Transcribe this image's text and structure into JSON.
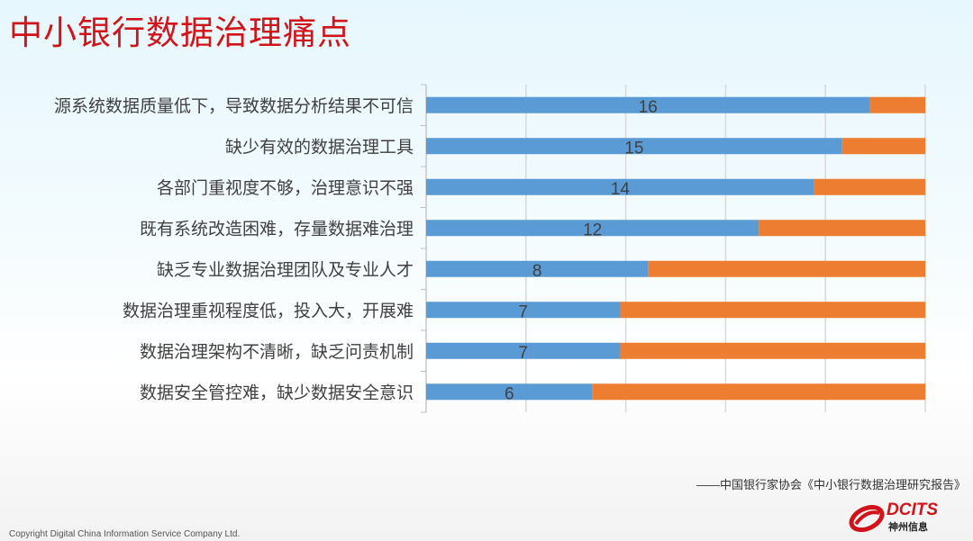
{
  "title": "中小银行数据治理痛点",
  "chart_data": {
    "type": "bar",
    "orientation": "horizontal",
    "stacked": true,
    "categories": [
      "源系统数据质量低下，导致数据分析结果不可信",
      "缺少有效的数据治理工具",
      "各部门重视度不够，治理意识不强",
      "既有系统改造困难，存量数据难治理",
      "缺乏专业数据治理团队及专业人才",
      "数据治理重视程度低，投入大，开展难",
      "数据治理架构不清晰，缺乏问责机制",
      "数据安全管控难，缺少数据安全意识"
    ],
    "series": [
      {
        "values": [
          16,
          15,
          14,
          12,
          8,
          7,
          7,
          6
        ],
        "color": "#5b9bd5",
        "data_labels": true
      },
      {
        "values": [
          2,
          3,
          4,
          6,
          10,
          11,
          11,
          12
        ],
        "color": "#ed7d31",
        "data_labels": false
      }
    ],
    "xlim": [
      0,
      18
    ],
    "grid": true,
    "legend": "none"
  },
  "source": "——中国银行家协会《中小银行数据治理研究报告》",
  "copyright": "Copyright  Digital China Information Service Company Ltd.",
  "logo": {
    "en": "DCITS",
    "cn": "神州信息",
    "color": "#d0141a"
  }
}
